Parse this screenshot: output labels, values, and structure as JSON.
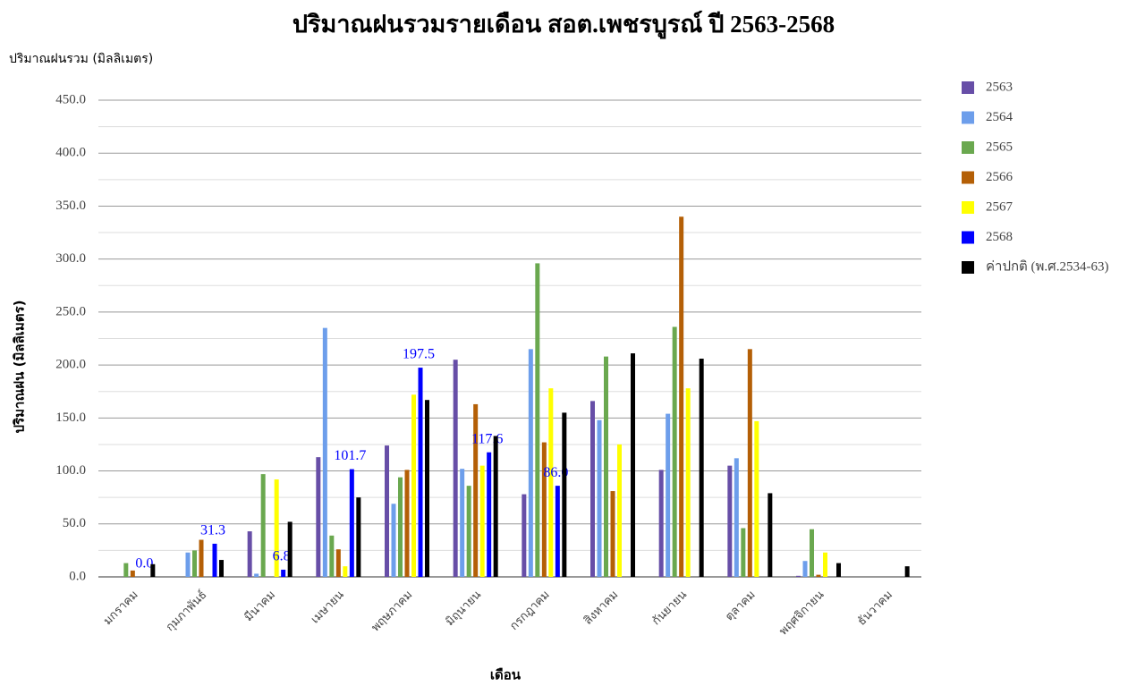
{
  "chart_data": {
    "type": "bar",
    "title": "ปริมาณฝนรวมรายเดือน  สอต.เพชรบูรณ์  ปี 2563-2568",
    "subtitle": "ปริมาณฝนรวม (มิลลิเมตร)",
    "y_label": "ปริมาณฝน (มิลลิเมตร)",
    "x_label": "เดือน",
    "categories": [
      "มกราคม",
      "กุมภาพันธ์",
      "มีนาคม",
      "เมษายน",
      "พฤษภาคม",
      "มิถุนายน",
      "กรกฎาคม",
      "สิงหาคม",
      "กันยายน",
      "ตุลาคม",
      "พฤศจิกายน",
      "ธันวาคม"
    ],
    "series": [
      {
        "name": "2563",
        "color": "#674ea7",
        "values": [
          0,
          0,
          43,
          113,
          124,
          205,
          78,
          166,
          101,
          105,
          1,
          0
        ]
      },
      {
        "name": "2564",
        "color": "#6d9eeb",
        "values": [
          0,
          23,
          3,
          235,
          69,
          102,
          215,
          148,
          154,
          112,
          15,
          0
        ]
      },
      {
        "name": "2565",
        "color": "#6aa84f",
        "values": [
          13,
          25,
          97,
          39,
          94,
          86,
          296,
          208,
          236,
          46,
          45,
          0
        ]
      },
      {
        "name": "2566",
        "color": "#b45f06",
        "values": [
          6,
          35,
          0,
          26,
          101,
          163,
          127,
          81,
          340,
          215,
          2,
          0
        ]
      },
      {
        "name": "2567",
        "color": "#ffff00",
        "values": [
          0,
          0,
          92,
          10,
          172,
          105,
          178,
          125,
          178,
          147,
          23,
          0
        ]
      },
      {
        "name": "2568",
        "color": "#0000ff",
        "values": [
          0,
          31.3,
          6.8,
          101.7,
          197.5,
          117.6,
          86,
          null,
          null,
          null,
          null,
          null
        ],
        "value_labels": [
          "0.0",
          "31.3",
          "6.8",
          "101.7",
          "197.5",
          "117.6",
          "86.0",
          null,
          null,
          null,
          null,
          null
        ],
        "label_color": "#0000ff"
      },
      {
        "name": "ค่าปกติ (พ.ศ.2534-63)",
        "color": "#000000",
        "values": [
          12,
          16,
          52,
          75,
          167,
          133,
          155,
          211,
          206,
          79,
          13,
          10
        ]
      }
    ],
    "ylim": [
      0,
      450
    ],
    "yticks": [
      {
        "value": 0,
        "label": "0.0"
      },
      {
        "value": 50,
        "label": "50.0"
      },
      {
        "value": 100,
        "label": "100.0"
      },
      {
        "value": 150,
        "label": "150.0"
      },
      {
        "value": 200,
        "label": "200.0"
      },
      {
        "value": 250,
        "label": "250.0"
      },
      {
        "value": 300,
        "label": "300.0"
      },
      {
        "value": 350,
        "label": "350.0"
      },
      {
        "value": 400,
        "label": "400.0"
      },
      {
        "value": 450,
        "label": "450.0"
      }
    ],
    "minor_yticks": [
      25,
      75,
      125,
      175,
      225,
      275,
      325,
      375,
      425
    ],
    "grid": true,
    "legend": "right"
  }
}
